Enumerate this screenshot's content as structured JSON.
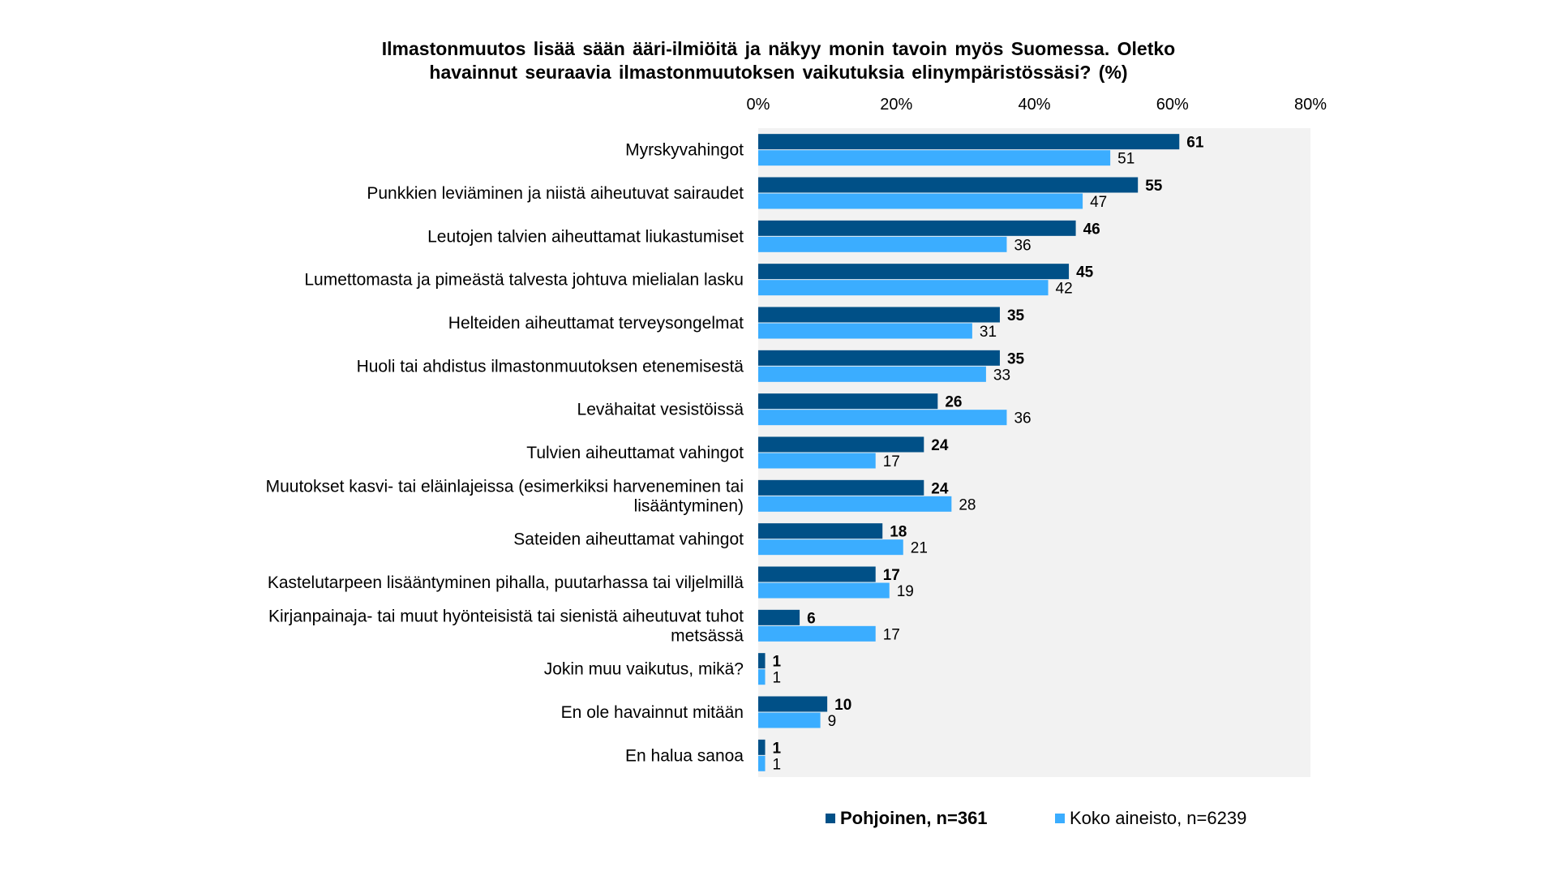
{
  "chart_data": {
    "type": "bar",
    "orientation": "horizontal",
    "title": "Ilmastonmuutos lisää sään ääri-ilmiöitä ja näkyy monin tavoin myös Suomessa. Oletko havainnut seuraavia ilmastonmuutoksen vaikutuksia elinympäristössäsi? (%)",
    "title_lines": [
      "Ilmastonmuutos  lisää  sään  ääri-ilmiöitä  ja  näkyy  monin  tavoin  myös  Suomessa.  Oletko",
      "havainnut  seuraavia  ilmastonmuutoksen  vaikutuksia  elinympäristössäsi?  (%)"
    ],
    "xlabel": "",
    "ylabel": "",
    "xlim": [
      0,
      80
    ],
    "xticks": [
      "0%",
      "20%",
      "40%",
      "60%",
      "80%"
    ],
    "xtick_values": [
      0,
      20,
      40,
      60,
      80
    ],
    "grid": false,
    "legend_position": "bottom",
    "categories": [
      "Myrskyvahingot",
      "Punkkien leviäminen ja niistä aiheutuvat sairaudet",
      "Leutojen talvien aiheuttamat liukastumiset",
      "Lumettomasta ja pimeästä talvesta johtuva mielialan lasku",
      "Helteiden aiheuttamat terveysongelmat",
      "Huoli tai ahdistus ilmastonmuutoksen etenemisestä",
      "Levähaitat vesistöissä",
      "Tulvien aiheuttamat vahingot",
      "Muutokset kasvi- tai eläinlajeissa (esimerkiksi harveneminen tai lisääntyminen)",
      "Sateiden aiheuttamat vahingot",
      "Kastelutarpeen lisääntyminen pihalla, puutarhassa tai viljelmillä",
      "Kirjanpainaja- tai muut hyönteisistä tai sienistä aiheutuvat tuhot metsässä",
      "Jokin muu vaikutus, mikä?",
      "En ole havainnut mitään",
      "En halua sanoa"
    ],
    "category_lines": [
      [
        "Myrskyvahingot"
      ],
      [
        "Punkkien leviäminen ja niistä aiheutuvat sairaudet"
      ],
      [
        "Leutojen talvien aiheuttamat liukastumiset"
      ],
      [
        "Lumettomasta ja pimeästä talvesta johtuva mielialan lasku"
      ],
      [
        "Helteiden aiheuttamat terveysongelmat"
      ],
      [
        "Huoli tai ahdistus ilmastonmuutoksen etenemisestä"
      ],
      [
        "Levähaitat vesistöissä"
      ],
      [
        "Tulvien aiheuttamat vahingot"
      ],
      [
        "Muutokset kasvi- tai eläinlajeissa (esimerkiksi harveneminen tai",
        "lisääntyminen)"
      ],
      [
        "Sateiden aiheuttamat vahingot"
      ],
      [
        "Kastelutarpeen lisääntyminen pihalla, puutarhassa tai viljelmillä"
      ],
      [
        "Kirjanpainaja- tai muut hyönteisistä tai sienistä aiheutuvat tuhot",
        "metsässä"
      ],
      [
        "Jokin muu vaikutus, mikä?"
      ],
      [
        "En ole havainnut mitään"
      ],
      [
        "En halua sanoa"
      ]
    ],
    "series": [
      {
        "name": "Pohjoinen, n=361",
        "color": "#005087",
        "bold": true,
        "values": [
          61,
          55,
          46,
          45,
          35,
          35,
          26,
          24,
          24,
          18,
          17,
          6,
          1,
          10,
          1
        ]
      },
      {
        "name": "Koko aineisto, n=6239",
        "color": "#3badff",
        "bold": false,
        "values": [
          51,
          47,
          36,
          42,
          31,
          33,
          36,
          17,
          28,
          21,
          19,
          17,
          1,
          9,
          1
        ]
      }
    ],
    "plot_background": "#f2f2f2"
  }
}
